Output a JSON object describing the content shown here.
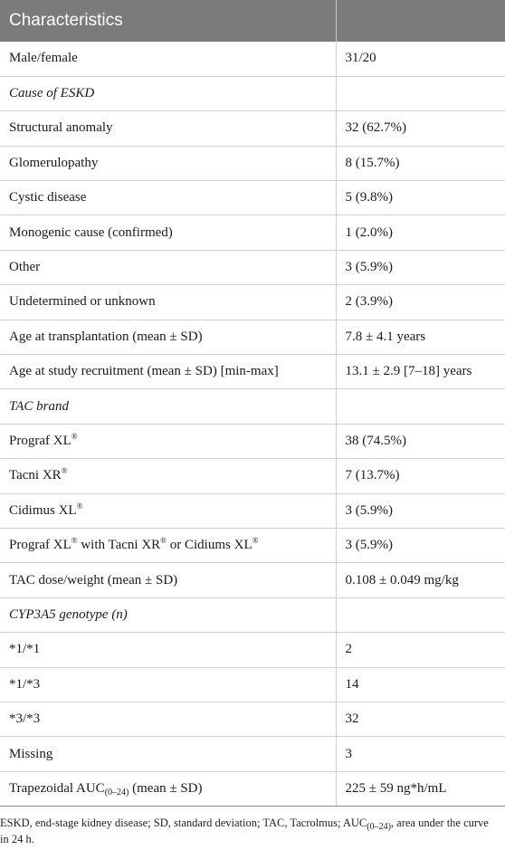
{
  "header": {
    "col1": "Characteristics",
    "col2": ""
  },
  "rows": [
    {
      "label": "Male/female",
      "value": "31/20"
    },
    {
      "label": "Cause of ESKD",
      "value": ""
    },
    {
      "label": "Structural anomaly",
      "value": "32 (62.7%)"
    },
    {
      "label": "Glomerulopathy",
      "value": "8 (15.7%)"
    },
    {
      "label": "Cystic disease",
      "value": "5 (9.8%)"
    },
    {
      "label": "Monogenic cause (confirmed)",
      "value": "1 (2.0%)"
    },
    {
      "label": "Other",
      "value": "3 (5.9%)"
    },
    {
      "label": "Undetermined or unknown",
      "value": "2 (3.9%)"
    },
    {
      "label": "Age at transplantation (mean ± SD)",
      "value": "7.8 ± 4.1 years"
    },
    {
      "label": "Age at study recruitment (mean ± SD) [min-max]",
      "value": "13.1 ± 2.9 [7–18] years"
    },
    {
      "label": "TAC brand",
      "value": ""
    },
    {
      "label_a": "Prograf XL",
      "sup_a": "®",
      "value": "38 (74.5%)"
    },
    {
      "label_a": "Tacni XR",
      "sup_a": "®",
      "value": "7 (13.7%)"
    },
    {
      "label_a": "Cidimus XL",
      "sup_a": "®",
      "value": "3 (5.9%)"
    },
    {
      "label_a": "Prograf XL",
      "sup_a": "®",
      "label_b": " with Tacni XR",
      "sup_b": "®",
      "label_c": " or Cidiums XL",
      "sup_c": "®",
      "value": "3 (5.9%)"
    },
    {
      "label": "TAC dose/weight (mean ± SD)",
      "value": "0.108 ± 0.049 mg/kg"
    },
    {
      "label": "CYP3A5 genotype (n)",
      "value": ""
    },
    {
      "label": "*1/*1",
      "value": "2"
    },
    {
      "label": "*1/*3",
      "value": "14"
    },
    {
      "label": "*3/*3",
      "value": "32"
    },
    {
      "label": "Missing",
      "value": "3"
    },
    {
      "label_a": "Trapezoidal AUC",
      "sub_a": "(0–24)",
      "label_b": " (mean ± SD)",
      "value": "225 ± 59 ng*h/mL"
    }
  ],
  "footnote": {
    "text_a": "ESKD, end-stage kidney disease; SD, standard deviation; TAC, Tacrolmus; AUC",
    "sub": "(0–24)",
    "text_b": ", area under the curve in 24 h."
  }
}
